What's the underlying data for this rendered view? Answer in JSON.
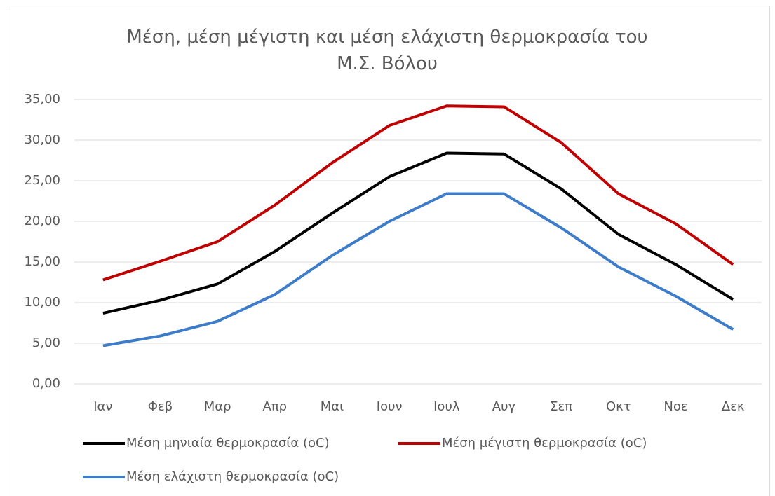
{
  "chart_data": {
    "type": "line",
    "title": "Μέση, μέση μέγιστη και μέση ελάχιστη θερμοκρασία του Μ.Σ. Βόλου",
    "categories": [
      "Ιαν",
      "Φεβ",
      "Μαρ",
      "Απρ",
      "Μαι",
      "Ιουν",
      "Ιουλ",
      "Αυγ",
      "Σεπ",
      "Οκτ",
      "Νοε",
      "Δεκ"
    ],
    "series": [
      {
        "name": "Μέση μηνιαία θερμοκρασία (oC)",
        "color": "#000000",
        "values": [
          8.7,
          10.3,
          12.3,
          16.3,
          21.0,
          25.5,
          28.4,
          28.3,
          24.0,
          18.4,
          14.7,
          10.4
        ]
      },
      {
        "name": "Μέση μέγιστη θερμοκρασία (oC)",
        "color": "#c00000",
        "values": [
          12.8,
          15.1,
          17.5,
          22.0,
          27.2,
          31.8,
          34.2,
          34.1,
          29.7,
          23.4,
          19.7,
          14.7
        ]
      },
      {
        "name": "Μέση ελάχιστη θερμοκρασία (oC)",
        "color": "#3d7cc9",
        "values": [
          4.7,
          5.9,
          7.7,
          11.0,
          15.8,
          20.0,
          23.4,
          23.4,
          19.2,
          14.4,
          10.8,
          6.7
        ]
      }
    ],
    "ylim": [
      0,
      35
    ],
    "yticks": [
      {
        "value": 0,
        "label": "0,00"
      },
      {
        "value": 5,
        "label": "5,00"
      },
      {
        "value": 10,
        "label": "10,00"
      },
      {
        "value": 15,
        "label": "15,00"
      },
      {
        "value": 20,
        "label": "20,00"
      },
      {
        "value": 25,
        "label": "25,00"
      },
      {
        "value": 30,
        "label": "30,00"
      },
      {
        "value": 35,
        "label": "35,00"
      }
    ],
    "grid": true,
    "legend": "bottom"
  }
}
